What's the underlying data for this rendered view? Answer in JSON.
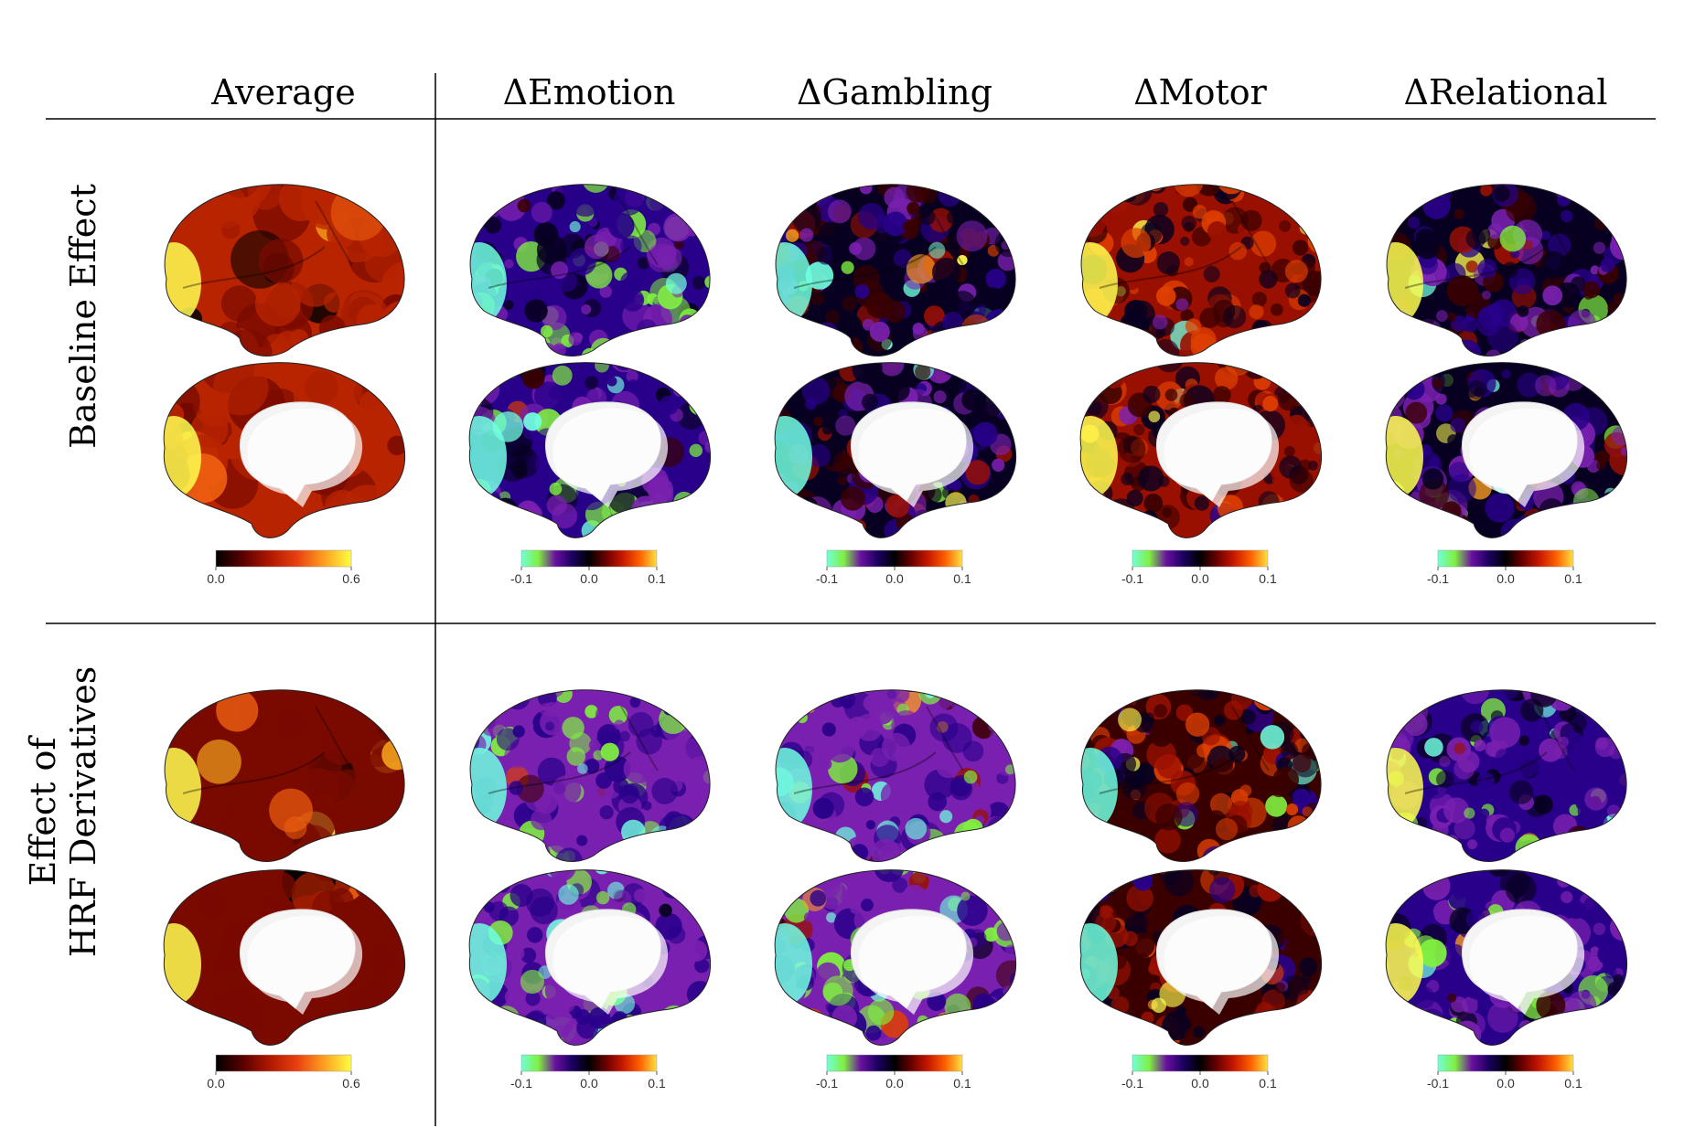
{
  "columns": [
    {
      "id": "average",
      "label": "Average"
    },
    {
      "id": "emotion",
      "label": "ΔEmotion"
    },
    {
      "id": "gambling",
      "label": "ΔGambling"
    },
    {
      "id": "motor",
      "label": "ΔMotor"
    },
    {
      "id": "relational",
      "label": "ΔRelational"
    }
  ],
  "rows": [
    {
      "id": "baseline",
      "label_lines": [
        "Baseline Effect"
      ]
    },
    {
      "id": "hrf",
      "label_lines": [
        "Effect of",
        "HRF Derivatives"
      ]
    }
  ],
  "colorbars": {
    "average": {
      "ticks": [
        "0.0",
        "0.6"
      ],
      "colors": [
        "#000000",
        "#5a0000",
        "#b01800",
        "#e84010",
        "#ffa020",
        "#ffff40"
      ]
    },
    "delta": {
      "ticks": [
        "-0.1",
        "0.0",
        "0.1"
      ],
      "colors": [
        "#70ffd8",
        "#80f040",
        "#6a10a0",
        "#1a0060",
        "#000000",
        "#6a0000",
        "#c81800",
        "#ff6000",
        "#ffe040"
      ]
    }
  },
  "cmaps": {
    "heat": [
      "#000000",
      "#3a0000",
      "#7a0a00",
      "#b82400",
      "#f06010",
      "#ffb020",
      "#ffff50"
    ],
    "diverging": [
      "#70ffe0",
      "#80f040",
      "#7a20b0",
      "#28008a",
      "#080020",
      "#3a0000",
      "#9a1000",
      "#e04000",
      "#ffa020",
      "#ffff50"
    ]
  },
  "panels": {
    "baseline": {
      "average": {
        "mean": 0.47,
        "spread": 0.1,
        "hot": 0.45
      },
      "emotion": {
        "mean": 0.3,
        "spread": 0.18,
        "hot": 0.3
      },
      "gambling": {
        "mean": 0.42,
        "spread": 0.22,
        "hot": 0.35
      },
      "motor": {
        "mean": 0.6,
        "spread": 0.2,
        "hot": 0.55
      },
      "relational": {
        "mean": 0.4,
        "spread": 0.22,
        "hot": 0.6
      }
    },
    "hrf": {
      "average": {
        "mean": 0.36,
        "spread": 0.07,
        "hot": 0.4
      },
      "emotion": {
        "mean": 0.28,
        "spread": 0.12,
        "hot": 0.25
      },
      "gambling": {
        "mean": 0.28,
        "spread": 0.12,
        "hot": 0.25
      },
      "motor": {
        "mean": 0.56,
        "spread": 0.2,
        "hot": 0.5
      },
      "relational": {
        "mean": 0.32,
        "spread": 0.14,
        "hot": 0.6
      }
    }
  }
}
